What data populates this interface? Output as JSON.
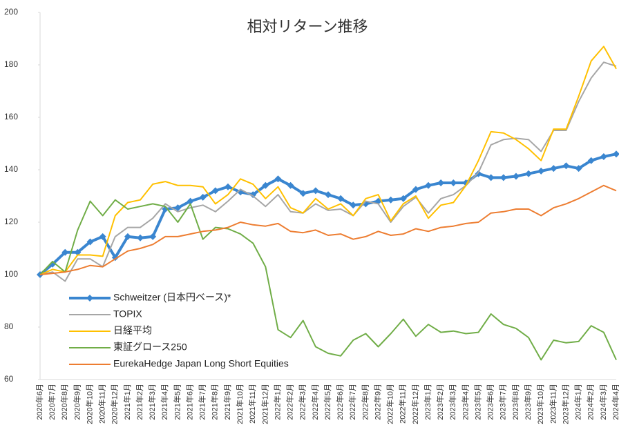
{
  "chart_data": {
    "type": "line",
    "title": "相対リターン推移",
    "categories": [
      "2020年6月",
      "2020年7月",
      "2020年8月",
      "2020年9月",
      "2020年10月",
      "2020年11月",
      "2020年12月",
      "2021年1月",
      "2021年2月",
      "2021年3月",
      "2021年4月",
      "2021年5月",
      "2021年6月",
      "2021年7月",
      "2021年8月",
      "2021年9月",
      "2021年10月",
      "2021年11月",
      "2021年12月",
      "2022年1月",
      "2022年2月",
      "2022年3月",
      "2022年4月",
      "2022年5月",
      "2022年6月",
      "2022年7月",
      "2022年8月",
      "2022年9月",
      "2022年10月",
      "2022年11月",
      "2022年12月",
      "2023年1月",
      "2023年2月",
      "2023年3月",
      "2023年4月",
      "2023年5月",
      "2023年6月",
      "2023年7月",
      "2023年8月",
      "2023年9月",
      "2023年10月",
      "2023年11月",
      "2023年12月",
      "2024年1月",
      "2024年2月",
      "2024年3月",
      "2024年4月"
    ],
    "series": [
      {
        "name": "Schweitzer (日本円ベース)*",
        "color": "#3a86d0",
        "marker": "diamond",
        "values": [
          100,
          104,
          108.5,
          108.5,
          112.5,
          114.5,
          106.5,
          114.5,
          114,
          114.5,
          125,
          125.5,
          128,
          129.5,
          132,
          133.5,
          131.5,
          130.5,
          134,
          136.5,
          134,
          131,
          132,
          130.5,
          129,
          126.5,
          127,
          128,
          128.5,
          129,
          132.5,
          134,
          135,
          135,
          135,
          138.5,
          137,
          137,
          137.5,
          138.5,
          139.5,
          140.5,
          141.5,
          140.5,
          143.5,
          145,
          146
        ]
      },
      {
        "name": "TOPIX",
        "color": "#a6a6a6",
        "values": [
          100,
          101,
          97.5,
          106,
          106,
          103,
          114.5,
          118,
          118,
          121.5,
          127,
          124,
          125.5,
          126.5,
          124,
          128,
          132.5,
          130,
          126,
          130.5,
          124,
          123.5,
          127,
          124.5,
          125,
          122.5,
          128,
          127,
          120,
          126,
          129.5,
          123.5,
          129,
          130.5,
          134,
          139,
          149.5,
          151.5,
          152,
          151.5,
          147,
          155,
          155,
          166,
          175,
          181,
          179.5
        ]
      },
      {
        "name": "日経平均",
        "color": "#ffc000",
        "values": [
          100,
          102,
          101,
          107.5,
          107.5,
          107,
          122.5,
          127.5,
          128.5,
          134.5,
          135.5,
          134,
          134,
          133.5,
          127,
          130.5,
          136.5,
          134.5,
          129,
          133.5,
          125.5,
          123.5,
          129,
          125,
          127,
          122.5,
          129,
          130.5,
          120.5,
          127,
          130,
          121.5,
          126.5,
          127.5,
          134,
          143.5,
          154.5,
          154,
          151.5,
          148,
          143.5,
          155.5,
          155.5,
          168,
          181.5,
          187,
          178.5
        ]
      },
      {
        "name": "東証グロース250",
        "color": "#70ad47",
        "values": [
          100,
          105,
          101,
          117,
          128,
          122.5,
          128.5,
          125,
          126,
          127,
          126,
          120,
          127,
          113.5,
          118,
          117.5,
          115.5,
          112,
          103,
          79,
          76,
          82.5,
          72.5,
          70,
          69,
          75,
          77.5,
          72.5,
          77.5,
          83,
          76.5,
          81,
          78,
          78.5,
          77.5,
          78,
          85,
          81,
          79.5,
          76,
          67.5,
          75,
          74,
          74.5,
          80.5,
          78,
          67.5
        ]
      },
      {
        "name": "EurekaHedge Japan Long Short Equities",
        "color": "#ed7d31",
        "values": [
          100,
          100.5,
          101,
          102,
          103.5,
          103,
          106,
          109,
          110,
          111.5,
          114.5,
          114.5,
          115.5,
          116.5,
          117,
          118,
          120,
          119,
          118.5,
          119.5,
          116.5,
          116,
          117,
          115,
          115.5,
          113.5,
          114.5,
          116.5,
          115,
          115.5,
          117.5,
          116.5,
          118,
          118.5,
          119.5,
          120,
          123.5,
          124,
          125,
          125,
          122.5,
          125.5,
          127,
          129,
          131.5,
          134,
          132
        ]
      }
    ],
    "ylim": [
      60,
      200
    ],
    "yticks": [
      60,
      80,
      100,
      120,
      140,
      160,
      180,
      200
    ],
    "grid": false,
    "legend": "lower left"
  }
}
